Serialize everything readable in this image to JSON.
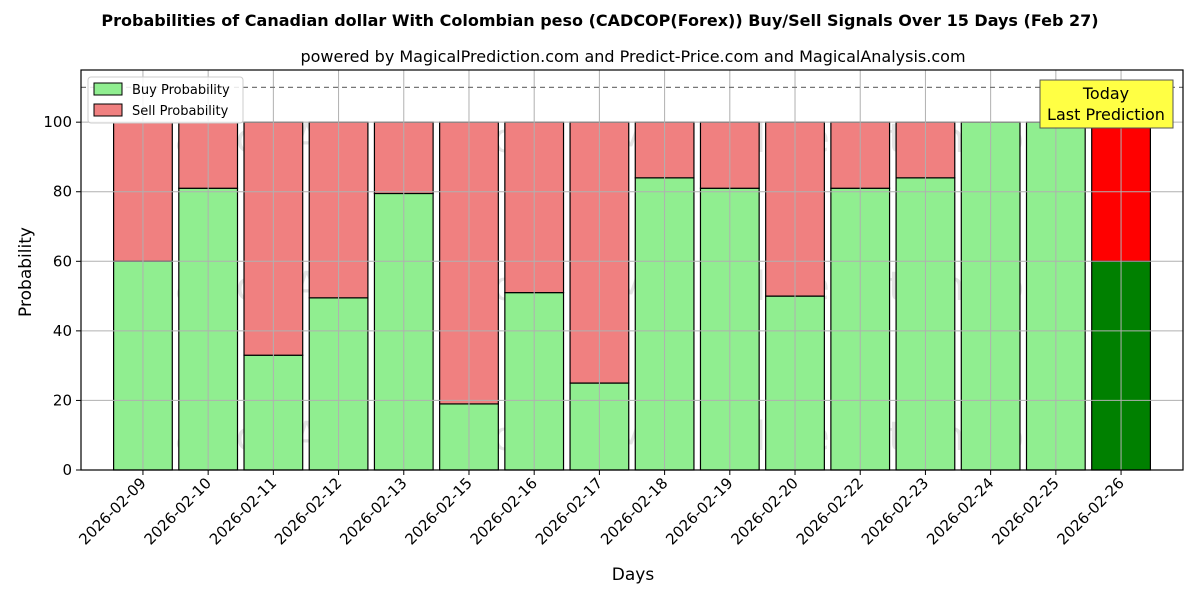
{
  "chart_data": {
    "type": "bar",
    "stacked": true,
    "title": "Probabilities of Canadian dollar With Colombian peso (CADCOP(Forex)) Buy/Sell Signals Over 15 Days (Feb 27)",
    "subtitle": "powered by MagicalPrediction.com and Predict-Price.com and MagicalAnalysis.com",
    "xlabel": "Days",
    "ylabel": "Probability",
    "ylim": [
      0,
      115
    ],
    "yticks": [
      0,
      20,
      40,
      60,
      80,
      100
    ],
    "grid": true,
    "legend_position": "top-left",
    "reference_line": 110,
    "categories": [
      "2026-02-09",
      "2026-02-10",
      "2026-02-11",
      "2026-02-12",
      "2026-02-13",
      "2026-02-15",
      "2026-02-16",
      "2026-02-17",
      "2026-02-18",
      "2026-02-19",
      "2026-02-20",
      "2026-02-22",
      "2026-02-23",
      "2026-02-24",
      "2026-02-25",
      "2026-02-26"
    ],
    "series": [
      {
        "name": "Buy Probability",
        "color": "#90ee90",
        "values": [
          60,
          81,
          33,
          49.5,
          79.5,
          19,
          51,
          25,
          84,
          81,
          50,
          81,
          84,
          100,
          100,
          60
        ]
      },
      {
        "name": "Sell Probability",
        "color": "#f08080",
        "values": [
          40,
          19,
          67,
          50.5,
          20.5,
          81,
          49,
          75,
          16,
          19,
          50,
          19,
          16,
          0,
          0,
          40
        ]
      }
    ],
    "highlight": {
      "category": "2026-02-26",
      "buy_color": "#008000",
      "sell_color": "#ff0000",
      "annotation_lines": [
        "Today",
        "Last Prediction"
      ],
      "annotation_color": "#ffff44"
    },
    "watermarks": [
      "MagicalAnalysis.com",
      "MagicalPrediction.com"
    ]
  }
}
